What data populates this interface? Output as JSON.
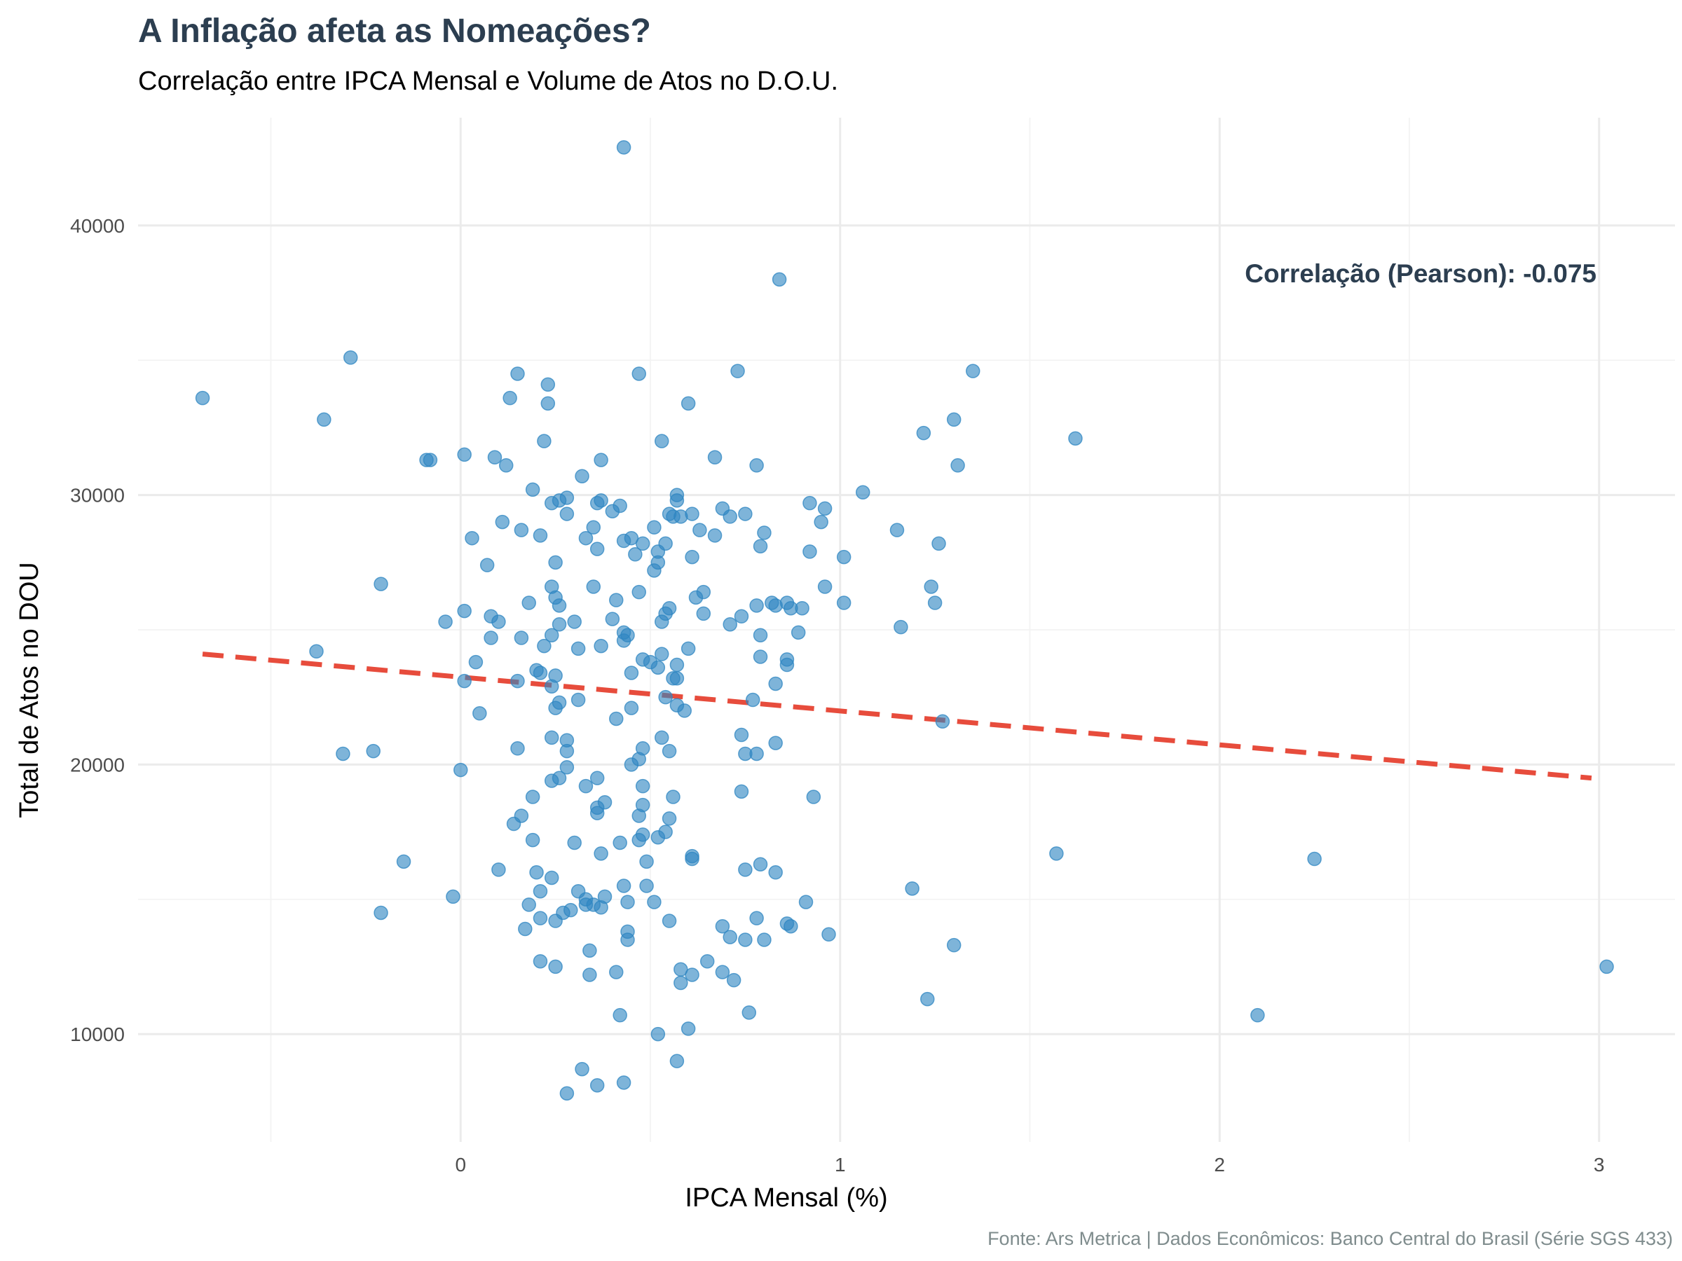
{
  "chart_data": {
    "type": "scatter",
    "title": "A Inflação afeta as Nomeações?",
    "subtitle": "Correlação entre IPCA Mensal e Volume de Atos no D.O.U.",
    "xlabel": "IPCA Mensal (%)",
    "ylabel": "Total de Atos no DOU",
    "caption": "Fonte: Ars Metrica | Dados Econômicos: Banco Central do Brasil (Série SGS 433)",
    "annotation": "Correlação (Pearson): -0.075",
    "xlim": [
      -0.85,
      3.2
    ],
    "ylim": [
      6000,
      44000
    ],
    "x_ticks": [
      0,
      1,
      2,
      3
    ],
    "x_tick_labels": [
      "0",
      "1",
      "2",
      "3"
    ],
    "y_ticks": [
      10000,
      20000,
      30000,
      40000
    ],
    "y_tick_labels": [
      "10000",
      "20000",
      "30000",
      "40000"
    ],
    "grid": true,
    "point_color": "#2e86c1",
    "trend_color": "#e74c3c",
    "trend_line": {
      "x": [
        -0.68,
        2.98
      ],
      "y": [
        24100,
        19500
      ],
      "style": "dashed"
    },
    "points": [
      [
        -0.68,
        33600
      ],
      [
        -0.29,
        35100
      ],
      [
        -0.36,
        32800
      ],
      [
        -0.38,
        24200
      ],
      [
        -0.31,
        20400
      ],
      [
        -0.23,
        20500
      ],
      [
        -0.21,
        26700
      ],
      [
        -0.21,
        14500
      ],
      [
        -0.15,
        16400
      ],
      [
        -0.09,
        31300
      ],
      [
        -0.08,
        31300
      ],
      [
        -0.04,
        25300
      ],
      [
        -0.02,
        15100
      ],
      [
        0.0,
        19800
      ],
      [
        0.01,
        31500
      ],
      [
        0.01,
        25700
      ],
      [
        0.01,
        23100
      ],
      [
        0.03,
        28400
      ],
      [
        0.04,
        23800
      ],
      [
        0.05,
        21900
      ],
      [
        0.07,
        27400
      ],
      [
        0.08,
        25500
      ],
      [
        0.08,
        24700
      ],
      [
        0.09,
        31400
      ],
      [
        0.1,
        25300
      ],
      [
        0.1,
        16100
      ],
      [
        0.11,
        29000
      ],
      [
        0.12,
        31100
      ],
      [
        0.13,
        33600
      ],
      [
        0.14,
        17800
      ],
      [
        0.15,
        34500
      ],
      [
        0.15,
        23100
      ],
      [
        0.15,
        20600
      ],
      [
        0.16,
        28700
      ],
      [
        0.16,
        24700
      ],
      [
        0.16,
        18100
      ],
      [
        0.17,
        13900
      ],
      [
        0.18,
        26000
      ],
      [
        0.18,
        14800
      ],
      [
        0.19,
        30200
      ],
      [
        0.19,
        18800
      ],
      [
        0.19,
        17200
      ],
      [
        0.2,
        23500
      ],
      [
        0.2,
        16000
      ],
      [
        0.21,
        28500
      ],
      [
        0.21,
        23400
      ],
      [
        0.21,
        15300
      ],
      [
        0.21,
        14300
      ],
      [
        0.21,
        12700
      ],
      [
        0.22,
        32000
      ],
      [
        0.22,
        24400
      ],
      [
        0.23,
        34100
      ],
      [
        0.23,
        33400
      ],
      [
        0.24,
        29700
      ],
      [
        0.24,
        26600
      ],
      [
        0.24,
        24800
      ],
      [
        0.24,
        22900
      ],
      [
        0.24,
        21000
      ],
      [
        0.24,
        19400
      ],
      [
        0.24,
        15800
      ],
      [
        0.25,
        27500
      ],
      [
        0.25,
        26200
      ],
      [
        0.25,
        23300
      ],
      [
        0.25,
        22100
      ],
      [
        0.25,
        14200
      ],
      [
        0.25,
        12500
      ],
      [
        0.26,
        29800
      ],
      [
        0.26,
        25900
      ],
      [
        0.26,
        25200
      ],
      [
        0.26,
        22300
      ],
      [
        0.26,
        19500
      ],
      [
        0.27,
        14500
      ],
      [
        0.28,
        29900
      ],
      [
        0.28,
        29300
      ],
      [
        0.28,
        20900
      ],
      [
        0.28,
        20500
      ],
      [
        0.28,
        19900
      ],
      [
        0.28,
        7800
      ],
      [
        0.29,
        14600
      ],
      [
        0.3,
        25300
      ],
      [
        0.3,
        17100
      ],
      [
        0.31,
        24300
      ],
      [
        0.31,
        22400
      ],
      [
        0.31,
        15300
      ],
      [
        0.32,
        30700
      ],
      [
        0.32,
        8700
      ],
      [
        0.33,
        28400
      ],
      [
        0.33,
        19200
      ],
      [
        0.33,
        15000
      ],
      [
        0.33,
        14800
      ],
      [
        0.34,
        13100
      ],
      [
        0.34,
        12200
      ],
      [
        0.35,
        28800
      ],
      [
        0.35,
        26600
      ],
      [
        0.35,
        14800
      ],
      [
        0.36,
        29700
      ],
      [
        0.36,
        28000
      ],
      [
        0.36,
        19500
      ],
      [
        0.36,
        18400
      ],
      [
        0.36,
        18200
      ],
      [
        0.36,
        8100
      ],
      [
        0.37,
        31300
      ],
      [
        0.37,
        29800
      ],
      [
        0.37,
        24400
      ],
      [
        0.37,
        16700
      ],
      [
        0.37,
        14700
      ],
      [
        0.38,
        18600
      ],
      [
        0.38,
        15100
      ],
      [
        0.4,
        29400
      ],
      [
        0.4,
        25400
      ],
      [
        0.41,
        26100
      ],
      [
        0.41,
        21700
      ],
      [
        0.41,
        12300
      ],
      [
        0.42,
        29600
      ],
      [
        0.42,
        17100
      ],
      [
        0.42,
        10700
      ],
      [
        0.43,
        28300
      ],
      [
        0.43,
        24900
      ],
      [
        0.43,
        24600
      ],
      [
        0.43,
        15500
      ],
      [
        0.43,
        42900
      ],
      [
        0.43,
        8200
      ],
      [
        0.44,
        24800
      ],
      [
        0.44,
        14900
      ],
      [
        0.44,
        13800
      ],
      [
        0.44,
        13500
      ],
      [
        0.45,
        28400
      ],
      [
        0.45,
        23400
      ],
      [
        0.45,
        22100
      ],
      [
        0.45,
        20000
      ],
      [
        0.46,
        27800
      ],
      [
        0.47,
        34500
      ],
      [
        0.47,
        26400
      ],
      [
        0.47,
        20200
      ],
      [
        0.47,
        18100
      ],
      [
        0.47,
        17200
      ],
      [
        0.48,
        28200
      ],
      [
        0.48,
        23900
      ],
      [
        0.48,
        20600
      ],
      [
        0.48,
        19200
      ],
      [
        0.48,
        18500
      ],
      [
        0.48,
        17400
      ],
      [
        0.49,
        16400
      ],
      [
        0.49,
        15500
      ],
      [
        0.5,
        23800
      ],
      [
        0.51,
        28800
      ],
      [
        0.51,
        27200
      ],
      [
        0.51,
        14900
      ],
      [
        0.52,
        27900
      ],
      [
        0.52,
        27500
      ],
      [
        0.52,
        23600
      ],
      [
        0.52,
        17300
      ],
      [
        0.52,
        10000
      ],
      [
        0.53,
        32000
      ],
      [
        0.53,
        25300
      ],
      [
        0.53,
        24100
      ],
      [
        0.53,
        21000
      ],
      [
        0.54,
        28200
      ],
      [
        0.54,
        25600
      ],
      [
        0.54,
        22500
      ],
      [
        0.54,
        17500
      ],
      [
        0.55,
        29300
      ],
      [
        0.55,
        25800
      ],
      [
        0.55,
        20500
      ],
      [
        0.55,
        18000
      ],
      [
        0.55,
        14200
      ],
      [
        0.56,
        29200
      ],
      [
        0.56,
        23200
      ],
      [
        0.56,
        18800
      ],
      [
        0.57,
        30000
      ],
      [
        0.57,
        29800
      ],
      [
        0.57,
        23700
      ],
      [
        0.57,
        23200
      ],
      [
        0.57,
        22200
      ],
      [
        0.57,
        9000
      ],
      [
        0.58,
        29200
      ],
      [
        0.58,
        12400
      ],
      [
        0.58,
        11900
      ],
      [
        0.59,
        22000
      ],
      [
        0.6,
        33400
      ],
      [
        0.6,
        24300
      ],
      [
        0.6,
        10200
      ],
      [
        0.61,
        29300
      ],
      [
        0.61,
        27700
      ],
      [
        0.61,
        16600
      ],
      [
        0.61,
        16500
      ],
      [
        0.61,
        12200
      ],
      [
        0.62,
        26200
      ],
      [
        0.63,
        28700
      ],
      [
        0.64,
        26400
      ],
      [
        0.64,
        25600
      ],
      [
        0.65,
        12700
      ],
      [
        0.67,
        31400
      ],
      [
        0.67,
        28500
      ],
      [
        0.69,
        29500
      ],
      [
        0.69,
        14000
      ],
      [
        0.69,
        12300
      ],
      [
        0.71,
        29200
      ],
      [
        0.71,
        25200
      ],
      [
        0.71,
        13600
      ],
      [
        0.72,
        12000
      ],
      [
        0.73,
        34600
      ],
      [
        0.74,
        25500
      ],
      [
        0.74,
        21100
      ],
      [
        0.74,
        19000
      ],
      [
        0.75,
        29300
      ],
      [
        0.75,
        20400
      ],
      [
        0.75,
        16100
      ],
      [
        0.75,
        13500
      ],
      [
        0.76,
        10800
      ],
      [
        0.77,
        22400
      ],
      [
        0.78,
        31100
      ],
      [
        0.78,
        25900
      ],
      [
        0.78,
        20400
      ],
      [
        0.78,
        14300
      ],
      [
        0.79,
        28100
      ],
      [
        0.79,
        24800
      ],
      [
        0.79,
        24000
      ],
      [
        0.79,
        16300
      ],
      [
        0.8,
        28600
      ],
      [
        0.8,
        13500
      ],
      [
        0.82,
        26000
      ],
      [
        0.83,
        25900
      ],
      [
        0.83,
        23000
      ],
      [
        0.83,
        20800
      ],
      [
        0.83,
        16000
      ],
      [
        0.84,
        38000
      ],
      [
        0.86,
        26000
      ],
      [
        0.86,
        23900
      ],
      [
        0.86,
        23700
      ],
      [
        0.86,
        14100
      ],
      [
        0.87,
        25800
      ],
      [
        0.87,
        14000
      ],
      [
        0.89,
        24900
      ],
      [
        0.9,
        25800
      ],
      [
        0.91,
        14900
      ],
      [
        0.92,
        29700
      ],
      [
        0.92,
        27900
      ],
      [
        0.93,
        18800
      ],
      [
        0.95,
        29000
      ],
      [
        0.96,
        29500
      ],
      [
        0.96,
        26600
      ],
      [
        0.97,
        13700
      ],
      [
        1.01,
        27700
      ],
      [
        1.01,
        26000
      ],
      [
        1.06,
        30100
      ],
      [
        1.15,
        28700
      ],
      [
        1.16,
        25100
      ],
      [
        1.19,
        15400
      ],
      [
        1.22,
        32300
      ],
      [
        1.23,
        11300
      ],
      [
        1.24,
        26600
      ],
      [
        1.25,
        26000
      ],
      [
        1.26,
        28200
      ],
      [
        1.27,
        21600
      ],
      [
        1.3,
        32800
      ],
      [
        1.3,
        13300
      ],
      [
        1.31,
        31100
      ],
      [
        1.35,
        34600
      ],
      [
        1.57,
        16700
      ],
      [
        1.62,
        32100
      ],
      [
        2.1,
        10700
      ],
      [
        2.25,
        16500
      ],
      [
        3.02,
        12500
      ]
    ]
  }
}
